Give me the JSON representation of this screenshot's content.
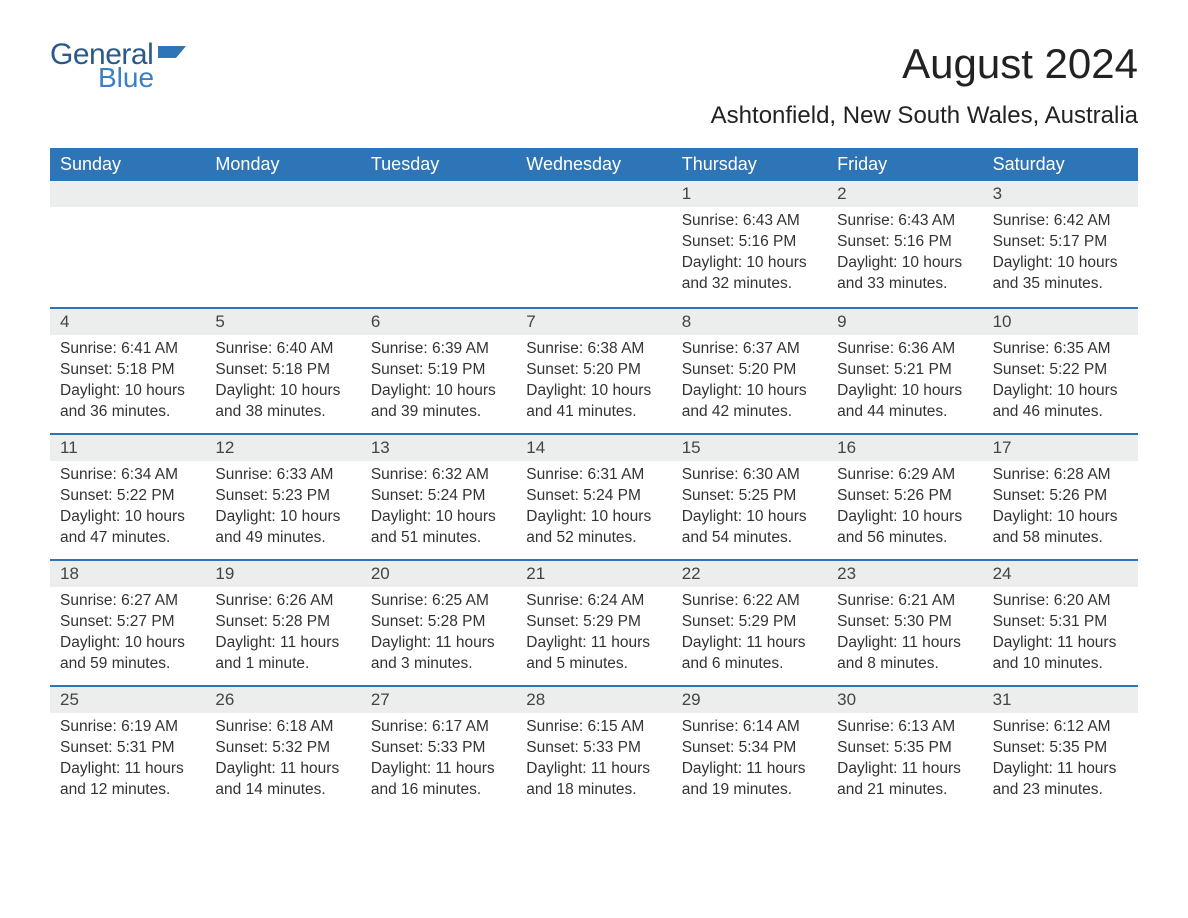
{
  "logo": {
    "general": "General",
    "blue": "Blue",
    "shape_color": "#2d75b6"
  },
  "title": "August 2024",
  "location": "Ashtonfield, New South Wales, Australia",
  "colors": {
    "header_bg": "#2d75b6",
    "header_text": "#ffffff",
    "daynum_bg": "#eceded",
    "row_border": "#2d75b6",
    "body_text": "#333333"
  },
  "weekdays": [
    "Sunday",
    "Monday",
    "Tuesday",
    "Wednesday",
    "Thursday",
    "Friday",
    "Saturday"
  ],
  "weeks": [
    [
      null,
      null,
      null,
      null,
      {
        "n": "1",
        "sr": "Sunrise: 6:43 AM",
        "ss": "Sunset: 5:16 PM",
        "dl": "Daylight: 10 hours and 32 minutes."
      },
      {
        "n": "2",
        "sr": "Sunrise: 6:43 AM",
        "ss": "Sunset: 5:16 PM",
        "dl": "Daylight: 10 hours and 33 minutes."
      },
      {
        "n": "3",
        "sr": "Sunrise: 6:42 AM",
        "ss": "Sunset: 5:17 PM",
        "dl": "Daylight: 10 hours and 35 minutes."
      }
    ],
    [
      {
        "n": "4",
        "sr": "Sunrise: 6:41 AM",
        "ss": "Sunset: 5:18 PM",
        "dl": "Daylight: 10 hours and 36 minutes."
      },
      {
        "n": "5",
        "sr": "Sunrise: 6:40 AM",
        "ss": "Sunset: 5:18 PM",
        "dl": "Daylight: 10 hours and 38 minutes."
      },
      {
        "n": "6",
        "sr": "Sunrise: 6:39 AM",
        "ss": "Sunset: 5:19 PM",
        "dl": "Daylight: 10 hours and 39 minutes."
      },
      {
        "n": "7",
        "sr": "Sunrise: 6:38 AM",
        "ss": "Sunset: 5:20 PM",
        "dl": "Daylight: 10 hours and 41 minutes."
      },
      {
        "n": "8",
        "sr": "Sunrise: 6:37 AM",
        "ss": "Sunset: 5:20 PM",
        "dl": "Daylight: 10 hours and 42 minutes."
      },
      {
        "n": "9",
        "sr": "Sunrise: 6:36 AM",
        "ss": "Sunset: 5:21 PM",
        "dl": "Daylight: 10 hours and 44 minutes."
      },
      {
        "n": "10",
        "sr": "Sunrise: 6:35 AM",
        "ss": "Sunset: 5:22 PM",
        "dl": "Daylight: 10 hours and 46 minutes."
      }
    ],
    [
      {
        "n": "11",
        "sr": "Sunrise: 6:34 AM",
        "ss": "Sunset: 5:22 PM",
        "dl": "Daylight: 10 hours and 47 minutes."
      },
      {
        "n": "12",
        "sr": "Sunrise: 6:33 AM",
        "ss": "Sunset: 5:23 PM",
        "dl": "Daylight: 10 hours and 49 minutes."
      },
      {
        "n": "13",
        "sr": "Sunrise: 6:32 AM",
        "ss": "Sunset: 5:24 PM",
        "dl": "Daylight: 10 hours and 51 minutes."
      },
      {
        "n": "14",
        "sr": "Sunrise: 6:31 AM",
        "ss": "Sunset: 5:24 PM",
        "dl": "Daylight: 10 hours and 52 minutes."
      },
      {
        "n": "15",
        "sr": "Sunrise: 6:30 AM",
        "ss": "Sunset: 5:25 PM",
        "dl": "Daylight: 10 hours and 54 minutes."
      },
      {
        "n": "16",
        "sr": "Sunrise: 6:29 AM",
        "ss": "Sunset: 5:26 PM",
        "dl": "Daylight: 10 hours and 56 minutes."
      },
      {
        "n": "17",
        "sr": "Sunrise: 6:28 AM",
        "ss": "Sunset: 5:26 PM",
        "dl": "Daylight: 10 hours and 58 minutes."
      }
    ],
    [
      {
        "n": "18",
        "sr": "Sunrise: 6:27 AM",
        "ss": "Sunset: 5:27 PM",
        "dl": "Daylight: 10 hours and 59 minutes."
      },
      {
        "n": "19",
        "sr": "Sunrise: 6:26 AM",
        "ss": "Sunset: 5:28 PM",
        "dl": "Daylight: 11 hours and 1 minute."
      },
      {
        "n": "20",
        "sr": "Sunrise: 6:25 AM",
        "ss": "Sunset: 5:28 PM",
        "dl": "Daylight: 11 hours and 3 minutes."
      },
      {
        "n": "21",
        "sr": "Sunrise: 6:24 AM",
        "ss": "Sunset: 5:29 PM",
        "dl": "Daylight: 11 hours and 5 minutes."
      },
      {
        "n": "22",
        "sr": "Sunrise: 6:22 AM",
        "ss": "Sunset: 5:29 PM",
        "dl": "Daylight: 11 hours and 6 minutes."
      },
      {
        "n": "23",
        "sr": "Sunrise: 6:21 AM",
        "ss": "Sunset: 5:30 PM",
        "dl": "Daylight: 11 hours and 8 minutes."
      },
      {
        "n": "24",
        "sr": "Sunrise: 6:20 AM",
        "ss": "Sunset: 5:31 PM",
        "dl": "Daylight: 11 hours and 10 minutes."
      }
    ],
    [
      {
        "n": "25",
        "sr": "Sunrise: 6:19 AM",
        "ss": "Sunset: 5:31 PM",
        "dl": "Daylight: 11 hours and 12 minutes."
      },
      {
        "n": "26",
        "sr": "Sunrise: 6:18 AM",
        "ss": "Sunset: 5:32 PM",
        "dl": "Daylight: 11 hours and 14 minutes."
      },
      {
        "n": "27",
        "sr": "Sunrise: 6:17 AM",
        "ss": "Sunset: 5:33 PM",
        "dl": "Daylight: 11 hours and 16 minutes."
      },
      {
        "n": "28",
        "sr": "Sunrise: 6:15 AM",
        "ss": "Sunset: 5:33 PM",
        "dl": "Daylight: 11 hours and 18 minutes."
      },
      {
        "n": "29",
        "sr": "Sunrise: 6:14 AM",
        "ss": "Sunset: 5:34 PM",
        "dl": "Daylight: 11 hours and 19 minutes."
      },
      {
        "n": "30",
        "sr": "Sunrise: 6:13 AM",
        "ss": "Sunset: 5:35 PM",
        "dl": "Daylight: 11 hours and 21 minutes."
      },
      {
        "n": "31",
        "sr": "Sunrise: 6:12 AM",
        "ss": "Sunset: 5:35 PM",
        "dl": "Daylight: 11 hours and 23 minutes."
      }
    ]
  ]
}
